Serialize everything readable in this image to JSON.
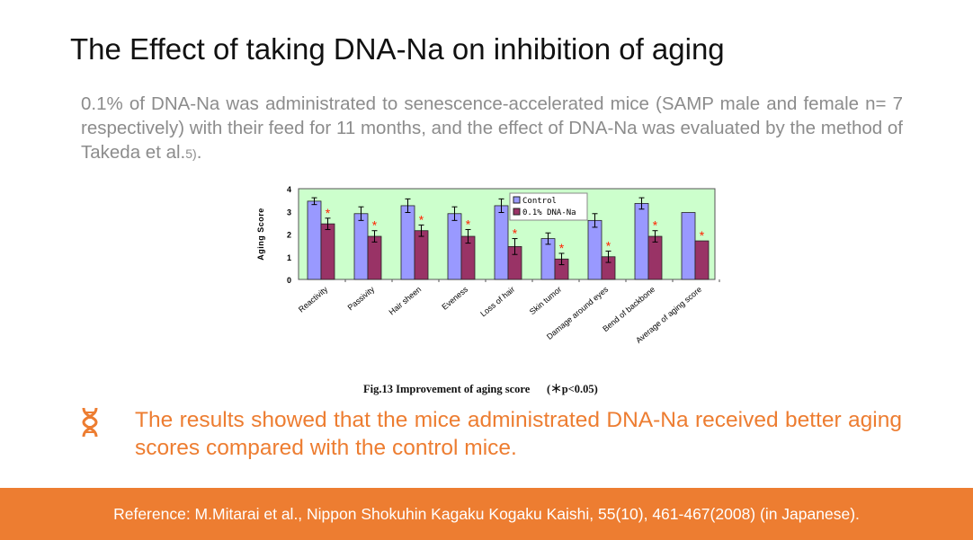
{
  "slide": {
    "title": "The Effect of taking DNA-Na on inhibition of aging",
    "intro": "0.1% of DNA-Na was administrated to senescence-accelerated mice (SAMP male and female n= 7 respectively) with their feed for 11 months, and the effect of DNA-Na was evaluated by the method of Takeda et al.",
    "intro_ref": "5)",
    "intro_end": ".",
    "caption": "Fig.13 Improvement of aging score      (＊p<0.05)",
    "bullet_icon": "dna-icon",
    "result": "The results showed that the mice administrated DNA-Na received better aging scores compared with the control mice.",
    "footer": "Reference: M.Mitarai et al., Nippon Shokuhin Kagaku Kogaku Kaishi, 55(10), 461-467(2008) (in Japanese).",
    "accent_color": "#ED7D31"
  },
  "chart_data": {
    "type": "bar",
    "title": "",
    "xlabel": "",
    "ylabel": "Aging Score",
    "ylim": [
      0,
      4
    ],
    "yticks": [
      "0",
      "1",
      "2",
      "3",
      "4"
    ],
    "grid": false,
    "legend": "top-center",
    "plot_background": "#CCFFCC",
    "significance_marker": "*",
    "categories": [
      "Reactivity",
      "Passivity",
      "Hair sheen",
      "Eveness",
      "Loss of hair",
      "Skin tumor",
      "Damage around eyes",
      "Bend of backbone",
      "Average of aging score"
    ],
    "series": [
      {
        "name": "Control",
        "color": "#9999FF",
        "values": [
          3.45,
          2.9,
          3.25,
          2.9,
          3.25,
          1.8,
          2.6,
          3.35,
          2.95
        ],
        "errors": [
          0.15,
          0.3,
          0.3,
          0.3,
          0.3,
          0.25,
          0.3,
          0.25,
          null
        ]
      },
      {
        "name": "0.1% DNA-Na",
        "color": "#993366",
        "values": [
          2.45,
          1.9,
          2.15,
          1.9,
          1.45,
          0.9,
          1.0,
          1.9,
          1.7
        ],
        "errors": [
          0.25,
          0.25,
          0.25,
          0.3,
          0.35,
          0.25,
          0.25,
          0.25,
          null
        ],
        "significant": [
          true,
          true,
          true,
          true,
          true,
          true,
          true,
          true,
          true
        ]
      }
    ]
  }
}
